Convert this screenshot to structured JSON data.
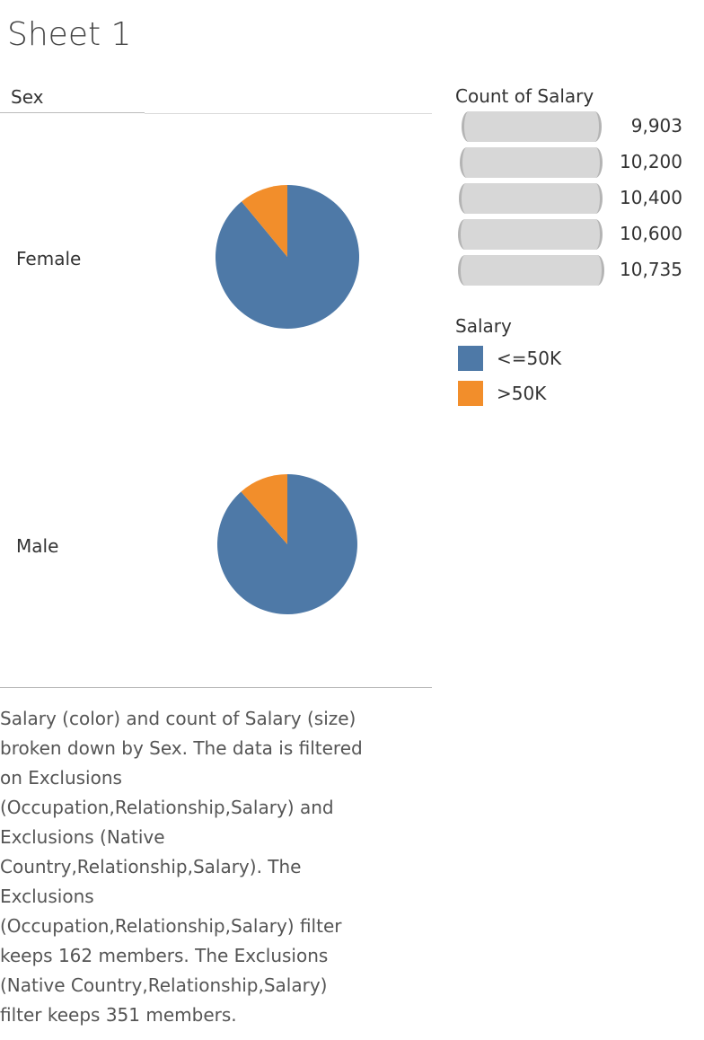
{
  "sheet": {
    "title": "Sheet 1"
  },
  "colors": {
    "le50k": "#4e79a7",
    "gt50k": "#f28e2b"
  },
  "chart_data": {
    "type": "pie",
    "row_header": "Sex",
    "panes": [
      {
        "label": "Female",
        "count": 10735,
        "slices": [
          {
            "name": "<=50K",
            "fraction": 0.89
          },
          {
            "name": ">50K",
            "fraction": 0.11
          }
        ]
      },
      {
        "label": "Male",
        "count": 10200,
        "slices": [
          {
            "name": "<=50K",
            "fraction": 0.885
          },
          {
            "name": ">50K",
            "fraction": 0.115
          }
        ]
      }
    ],
    "size_legend": {
      "title": "Count of Salary",
      "items": [
        "9,903",
        "10,200",
        "10,400",
        "10,600",
        "10,735"
      ]
    },
    "color_legend": {
      "title": "Salary",
      "items": [
        {
          "label": "<=50K",
          "color": "#4e79a7"
        },
        {
          "label": ">50K",
          "color": "#f28e2b"
        }
      ]
    }
  },
  "caption": {
    "lines": [
      "Salary (color) and count of Salary (size)",
      "broken down by Sex. The data is filtered",
      "on Exclusions",
      "(Occupation,Relationship,Salary) and",
      "Exclusions (Native",
      "Country,Relationship,Salary). The",
      "Exclusions",
      "(Occupation,Relationship,Salary) filter",
      "keeps 162 members. The Exclusions",
      "(Native Country,Relationship,Salary)",
      "filter keeps 351 members."
    ]
  }
}
